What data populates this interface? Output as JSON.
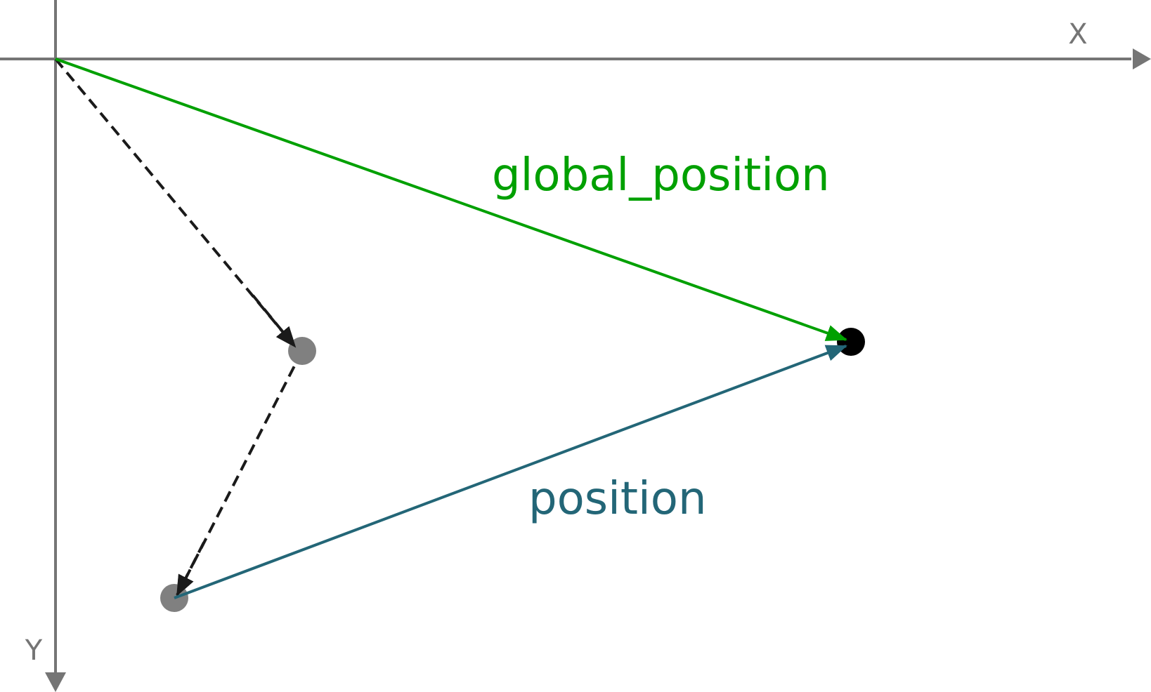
{
  "axes": {
    "x_label": "X",
    "y_label": "Y",
    "color": "#757575"
  },
  "vectors": {
    "global_position": {
      "label": "global_position",
      "color": "#00a000"
    },
    "position": {
      "label": "position",
      "color": "#236677"
    },
    "parent_chain": {
      "color": "#1a1a1a",
      "style": "dashed"
    }
  },
  "points": {
    "target_color": "#000000",
    "parent_color": "#808080"
  }
}
